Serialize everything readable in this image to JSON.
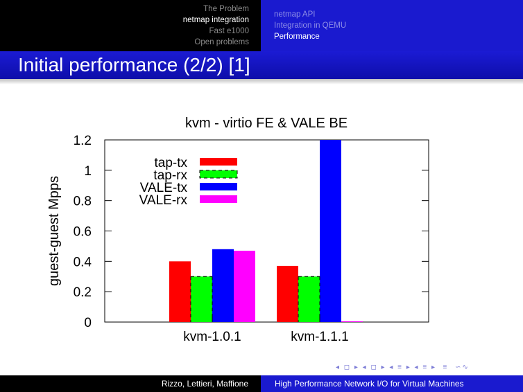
{
  "header": {
    "sections": [
      {
        "label": "The Problem",
        "active": false
      },
      {
        "label": "netmap integration",
        "active": true
      },
      {
        "label": "Fast e1000",
        "active": false
      },
      {
        "label": "Open problems",
        "active": false
      }
    ],
    "subsections": [
      {
        "label": "netmap API",
        "active": false
      },
      {
        "label": "Integration in QEMU",
        "active": false
      },
      {
        "label": "Performance",
        "active": true
      }
    ]
  },
  "frame": {
    "title": "Initial performance (2/2) [1]"
  },
  "footer": {
    "authors": "Rizzo, Lettieri, Maffione",
    "talk_title": "High Performance Network I/O for Virtual Machines"
  },
  "colors": {
    "header_blue": "#1a1acf",
    "header_black": "#000000"
  },
  "chart_data": {
    "type": "bar",
    "title": "kvm - virtio FE & VALE BE",
    "xlabel": "",
    "ylabel": "guest-guest Mpps",
    "ylim": [
      0,
      1.2
    ],
    "yticks": [
      0,
      0.2,
      0.4,
      0.6,
      0.8,
      1,
      1.2
    ],
    "ytick_labels": [
      "0",
      "0.2",
      "0.4",
      "0.6",
      "0.8",
      "1",
      "1.2"
    ],
    "categories": [
      "kvm-1.0.1",
      "kvm-1.1.1"
    ],
    "legend_position": "top-left",
    "series": [
      {
        "name": "tap-tx",
        "color": "#ff0000",
        "values": [
          0.4,
          0.37
        ]
      },
      {
        "name": "tap-rx",
        "color": "#00ff00",
        "values": [
          0.3,
          0.3
        ]
      },
      {
        "name": "VALE-tx",
        "color": "#0000ff",
        "values": [
          0.48,
          1.2
        ]
      },
      {
        "name": "VALE-rx",
        "color": "#ff00ff",
        "values": [
          0.47,
          0.005
        ]
      }
    ]
  }
}
